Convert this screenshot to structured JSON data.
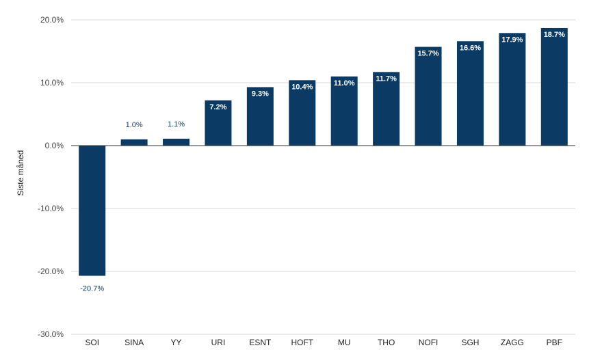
{
  "chart_data": {
    "type": "bar",
    "title": "",
    "xlabel": "",
    "ylabel": "Siste måned",
    "categories": [
      "SOI",
      "SINA",
      "YY",
      "URI",
      "ESNT",
      "HOFT",
      "MU",
      "THO",
      "NOFI",
      "SGH",
      "ZAGG",
      "PBF"
    ],
    "values": [
      -20.7,
      1.0,
      1.1,
      7.2,
      9.3,
      10.4,
      11.0,
      11.7,
      15.7,
      16.6,
      17.9,
      18.7
    ],
    "data_labels": [
      "-20.7%",
      "1.0%",
      "1.1%",
      "7.2%",
      "9.3%",
      "10.4%",
      "11.0%",
      "11.7%",
      "15.7%",
      "16.6%",
      "17.9%",
      "18.7%"
    ],
    "ylim": [
      -30,
      20
    ],
    "yticks": [
      20,
      10,
      0,
      -10,
      -20,
      -30
    ],
    "ytick_labels": [
      "20.0%",
      "10.0%",
      "0.0%",
      "-10.0%",
      "-20.0%",
      "-30.0%"
    ],
    "grid": true,
    "legend": "none",
    "colors": {
      "bar": "#0b3a64",
      "grid": "#d9d9d9",
      "zero_line": "#333333"
    }
  }
}
